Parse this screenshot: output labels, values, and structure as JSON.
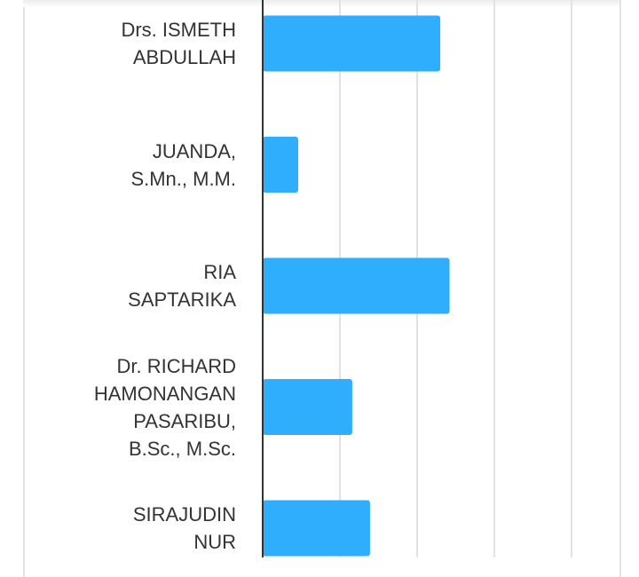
{
  "chart_data": {
    "type": "bar",
    "orientation": "horizontal",
    "categories": [
      "Drs. ISMETH\nABDULLAH",
      "JUANDA,\nS.Mn., M.M.",
      "RIA\nSAPTARIKA",
      "Dr. RICHARD\nHAMONANGAN\nPASARIBU,\nB.Sc., M.Sc.",
      "SIRAJUDIN\nNUR"
    ],
    "values": [
      2.3,
      0.46,
      2.42,
      1.16,
      1.39
    ],
    "xlim": [
      0,
      4.6
    ],
    "grid_step": 1,
    "grid": true,
    "bar_color": "#2eaefc",
    "title": "",
    "xlabel": "",
    "ylabel": ""
  }
}
